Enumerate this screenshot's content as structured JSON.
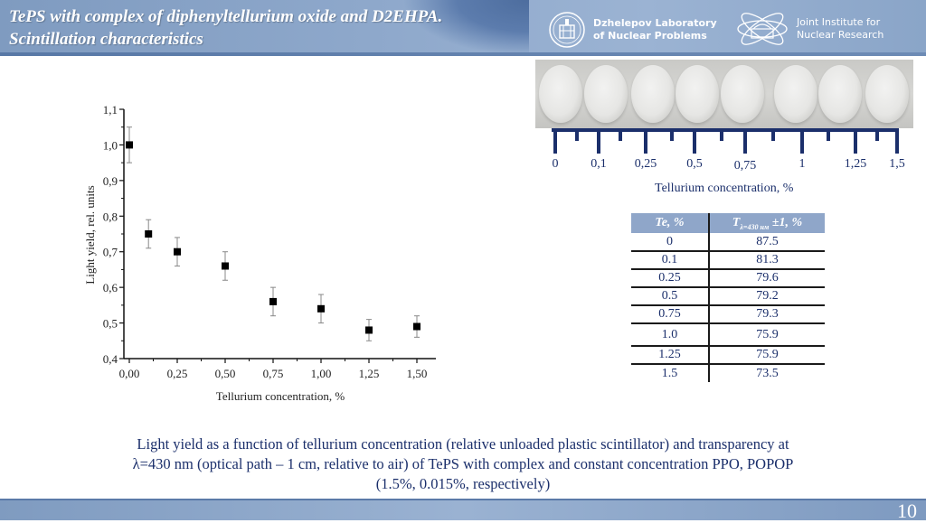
{
  "header": {
    "title_line1": "TePS with complex of diphenyltellurium oxide and D2EHPA.",
    "title_line2": "Scintillation characteristics",
    "logo1": {
      "icon": "dlnp-emblem-icon",
      "line1": "Dzhelepov Laboratory",
      "line2": "of Nuclear Problems"
    },
    "logo2": {
      "icon": "jinr-atom-icon",
      "line1": "Joint Institute for",
      "line2": "Nuclear Research"
    }
  },
  "photo_scale": {
    "labels": [
      "0",
      "0,1",
      "0,25",
      "0,5",
      "0,75",
      "1",
      "1,25",
      "1,5"
    ],
    "title": "Tellurium concentration, %"
  },
  "table": {
    "headers": [
      "Te, %",
      "T",
      "λ=430 нм",
      " ±1, %"
    ],
    "rows": [
      [
        "0",
        "87.5"
      ],
      [
        "0.1",
        "81.3"
      ],
      [
        "0.25",
        "79.6"
      ],
      [
        "0.5",
        "79.2"
      ],
      [
        "0.75",
        "79.3"
      ],
      [
        "1.0",
        "75.9"
      ],
      [
        "1.25",
        "75.9"
      ],
      [
        "1.5",
        "73.5"
      ]
    ]
  },
  "chart_data": {
    "type": "scatter",
    "title": "",
    "xlabel": "Tellurium concentration, %",
    "ylabel": "Light yield, rel. units",
    "xlim": [
      0,
      1.5
    ],
    "ylim": [
      0.4,
      1.1
    ],
    "x_ticks": [
      "0,00",
      "0,25",
      "0,50",
      "0,75",
      "1,00",
      "1,25",
      "1,50"
    ],
    "y_ticks": [
      "0,4",
      "0,5",
      "0,6",
      "0,7",
      "0,8",
      "0,9",
      "1,0",
      "1,1"
    ],
    "grid": false,
    "series": [
      {
        "name": "Light yield",
        "marker": "square",
        "x": [
          0,
          0.1,
          0.25,
          0.5,
          0.75,
          1.0,
          1.25,
          1.5
        ],
        "y": [
          1.0,
          0.75,
          0.7,
          0.66,
          0.56,
          0.54,
          0.48,
          0.49
        ],
        "yerr": [
          0.05,
          0.04,
          0.04,
          0.04,
          0.04,
          0.04,
          0.03,
          0.03
        ]
      }
    ]
  },
  "caption": {
    "line1": "Light yield as a function of tellurium concentration (relative unloaded plastic scintillator) and transparency at",
    "line2": "λ=430 nm (optical path – 1 cm, relative to air) of TePS with complex and constant concentration PPO, POPOP",
    "line3": "(1.5%, 0.015%, respectively)"
  },
  "page_number": "10",
  "colors": {
    "header_blue": "#8ea8cb",
    "text_navy": "#1b2f6b",
    "table_header": "#8fa6c9"
  }
}
